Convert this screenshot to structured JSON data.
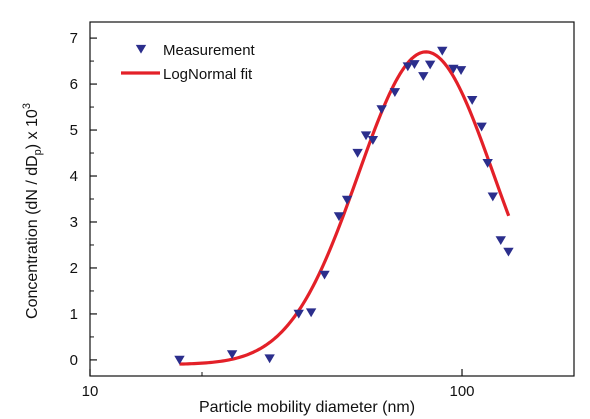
{
  "chart_data": {
    "type": "scatter",
    "xscale": "log",
    "xlim": [
      10,
      200
    ],
    "ylim": [
      -0.35,
      7.35
    ],
    "xlabel": "Particle mobility diameter (nm)",
    "ylabel_main": "Concentration (dN / dD",
    "ylabel_sub": "p",
    "ylabel_mid": ") x 10",
    "ylabel_sup": "3",
    "x_ticks": [
      {
        "value": 10,
        "label": "10"
      },
      {
        "value": 100,
        "label": "100"
      }
    ],
    "y_ticks": [
      {
        "value": 0,
        "label": "0"
      },
      {
        "value": 1,
        "label": "1"
      },
      {
        "value": 2,
        "label": "2"
      },
      {
        "value": 3,
        "label": "3"
      },
      {
        "value": 4,
        "label": "4"
      },
      {
        "value": 5,
        "label": "5"
      },
      {
        "value": 6,
        "label": "6"
      },
      {
        "value": 7,
        "label": "7"
      }
    ],
    "legend_position": "top-left",
    "series": [
      {
        "name": "Measurement",
        "kind": "markers",
        "marker": "triangle-down",
        "color": "#2b2e8c",
        "points": [
          {
            "x": 17.4,
            "y": 0.0
          },
          {
            "x": 24.1,
            "y": 0.12
          },
          {
            "x": 30.4,
            "y": 0.03
          },
          {
            "x": 36.4,
            "y": 1.0
          },
          {
            "x": 39.3,
            "y": 1.03
          },
          {
            "x": 42.7,
            "y": 1.85
          },
          {
            "x": 46.7,
            "y": 3.12
          },
          {
            "x": 49.1,
            "y": 3.48
          },
          {
            "x": 52.4,
            "y": 4.5
          },
          {
            "x": 55.2,
            "y": 4.88
          },
          {
            "x": 57.6,
            "y": 4.78
          },
          {
            "x": 60.8,
            "y": 5.45
          },
          {
            "x": 66.0,
            "y": 5.82
          },
          {
            "x": 71.5,
            "y": 6.38
          },
          {
            "x": 74.5,
            "y": 6.43
          },
          {
            "x": 78.7,
            "y": 6.17
          },
          {
            "x": 82.1,
            "y": 6.42
          },
          {
            "x": 88.5,
            "y": 6.72
          },
          {
            "x": 94.8,
            "y": 6.33
          },
          {
            "x": 99.4,
            "y": 6.3
          },
          {
            "x": 106.5,
            "y": 5.65
          },
          {
            "x": 112.9,
            "y": 5.07
          },
          {
            "x": 117.2,
            "y": 4.28
          },
          {
            "x": 121.0,
            "y": 3.55
          },
          {
            "x": 127.1,
            "y": 2.6
          },
          {
            "x": 133.3,
            "y": 2.35
          }
        ]
      },
      {
        "name": "LogNormal fit",
        "kind": "line",
        "color": "#e32028",
        "params": {
          "y0": -0.1,
          "A": 6.8,
          "xc": 80,
          "w": 0.42,
          "x_from": 17.4,
          "x_to": 133.5
        }
      }
    ]
  }
}
